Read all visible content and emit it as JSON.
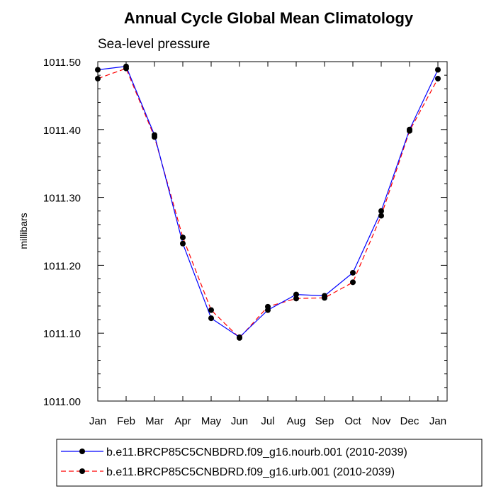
{
  "chart_data": {
    "type": "line",
    "title": "Annual Cycle Global Mean Climatology",
    "subtitle": "Sea-level pressure",
    "ylabel": "millibars",
    "xlabel": "",
    "categories": [
      "Jan",
      "Feb",
      "Mar",
      "Apr",
      "May",
      "Jun",
      "Jul",
      "Aug",
      "Sep",
      "Oct",
      "Nov",
      "Dec",
      "Jan"
    ],
    "yticks": [
      "1011.00",
      "1011.10",
      "1011.20",
      "1011.30",
      "1011.40",
      "1011.50"
    ],
    "ylim": [
      1011.0,
      1011.5
    ],
    "grid": false,
    "legend_position": "bottom",
    "series": [
      {
        "name": "b.e11.BRCP85C5CNBDRD.f09_g16.nourb.001 (2010-2039)",
        "color": "#0000ff",
        "line_style": "solid",
        "values": [
          1011.488,
          1011.493,
          1011.392,
          1011.232,
          1011.122,
          1011.094,
          1011.134,
          1011.157,
          1011.155,
          1011.189,
          1011.28,
          1011.4,
          1011.488
        ]
      },
      {
        "name": "b.e11.BRCP85C5CNBDRD.f09_g16.urb.001 (2010-2039)",
        "color": "#ff0000",
        "line_style": "dashed",
        "values": [
          1011.475,
          1011.49,
          1011.389,
          1011.241,
          1011.134,
          1011.093,
          1011.139,
          1011.151,
          1011.152,
          1011.175,
          1011.273,
          1011.398,
          1011.475
        ]
      }
    ]
  }
}
